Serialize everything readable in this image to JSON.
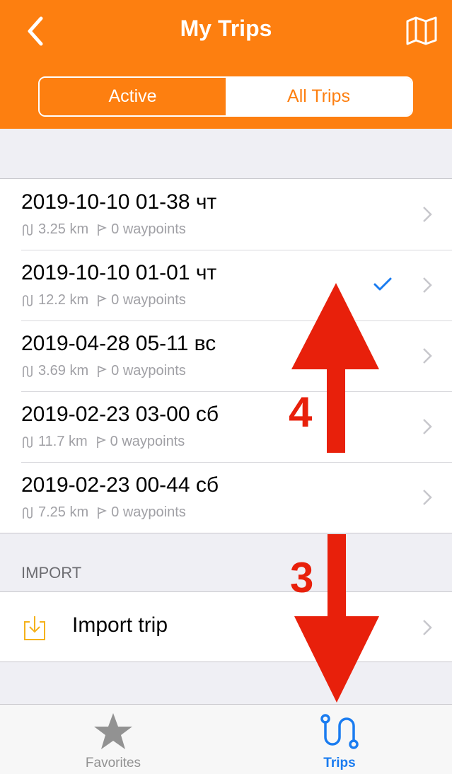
{
  "header": {
    "title": "My Trips",
    "back_icon": "chevron-left-icon",
    "map_icon": "map-icon",
    "background": "#fd7f10"
  },
  "segmented": {
    "items": [
      "Active",
      "All Trips"
    ],
    "selected": "Active"
  },
  "trips": [
    {
      "title": "2019-10-10 01-38 чт",
      "distance": "3.25 km",
      "waypoints": "0 waypoints",
      "checked": false
    },
    {
      "title": "2019-10-10 01-01 чт",
      "distance": "12.2 km",
      "waypoints": "0 waypoints",
      "checked": true
    },
    {
      "title": "2019-04-28 05-11 вс",
      "distance": "3.69 km",
      "waypoints": "0 waypoints",
      "checked": false
    },
    {
      "title": "2019-02-23 03-00 сб",
      "distance": "11.7 km",
      "waypoints": "0 waypoints",
      "checked": false
    },
    {
      "title": "2019-02-23 00-44 сб",
      "distance": "7.25 km",
      "waypoints": "0 waypoints",
      "checked": false
    }
  ],
  "import_section": {
    "header": "IMPORT",
    "item_label": "Import trip",
    "icon": "import-icon"
  },
  "tabbar": {
    "items": [
      {
        "label": "Favorites",
        "icon": "star-icon",
        "selected": false
      },
      {
        "label": "Trips",
        "icon": "route-icon",
        "selected": true
      }
    ],
    "selected_color": "#1a7cf0"
  },
  "annotations": {
    "up_arrow_label": "4",
    "down_arrow_label": "3",
    "color": "#e8200b"
  }
}
